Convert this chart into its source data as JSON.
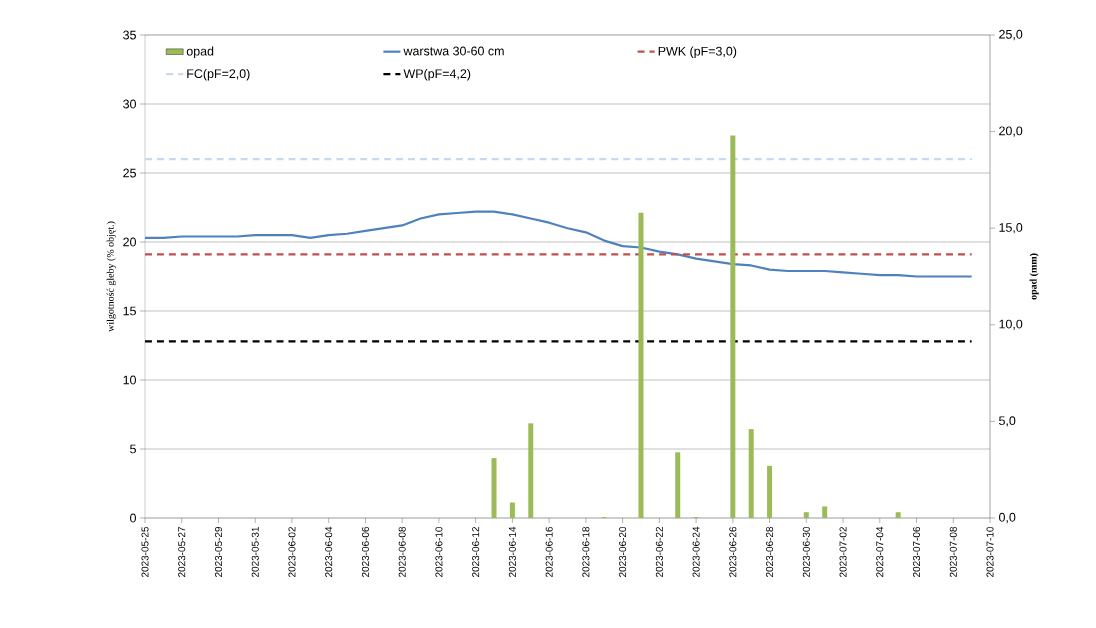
{
  "chart_data": {
    "type": "line",
    "ylabel": "wilgotność gleby (% objęt.)",
    "y2label": "opad (mm)",
    "xlim": [
      "2023-05-25",
      "2023-07-10"
    ],
    "xticks": [
      "2023-05-25",
      "2023-05-27",
      "2023-05-29",
      "2023-05-31",
      "2023-06-02",
      "2023-06-04",
      "2023-06-06",
      "2023-06-08",
      "2023-06-10",
      "2023-06-12",
      "2023-06-14",
      "2023-06-16",
      "2023-06-18",
      "2023-06-20",
      "2023-06-22",
      "2023-06-24",
      "2023-06-26",
      "2023-06-28",
      "2023-06-30",
      "2023-07-02",
      "2023-07-04",
      "2023-07-06",
      "2023-07-08",
      "2023-07-10"
    ],
    "ylim": [
      0,
      35
    ],
    "yticks": [
      0,
      5,
      10,
      15,
      20,
      25,
      30,
      35
    ],
    "y2lim": [
      0,
      25
    ],
    "y2ticks": [
      {
        "value": 0,
        "label": "0,0"
      },
      {
        "value": 5,
        "label": "5,0"
      },
      {
        "value": 10,
        "label": "10,0"
      },
      {
        "value": 15,
        "label": "15,0"
      },
      {
        "value": 20,
        "label": "20,0"
      },
      {
        "value": 25,
        "label": "25,0"
      }
    ],
    "grid": "y",
    "legend": "top",
    "series": [
      {
        "name": "opad",
        "type": "bar",
        "axis": "y2",
        "color": "#9bbb59",
        "x": [
          "2023-06-13",
          "2023-06-14",
          "2023-06-15",
          "2023-06-19",
          "2023-06-21",
          "2023-06-23",
          "2023-06-24",
          "2023-06-26",
          "2023-06-27",
          "2023-06-28",
          "2023-06-30",
          "2023-07-01",
          "2023-07-05"
        ],
        "values": [
          3.1,
          0.8,
          4.9,
          0.05,
          15.8,
          3.4,
          0.05,
          19.8,
          4.6,
          2.7,
          0.3,
          0.6,
          0.3
        ]
      },
      {
        "name": "warstwa 30-60 cm",
        "color": "#4f81bd",
        "line_style": "solid",
        "x": [
          "2023-05-25",
          "2023-05-26",
          "2023-05-27",
          "2023-05-28",
          "2023-05-29",
          "2023-05-30",
          "2023-05-31",
          "2023-06-01",
          "2023-06-02",
          "2023-06-03",
          "2023-06-04",
          "2023-06-05",
          "2023-06-06",
          "2023-06-07",
          "2023-06-08",
          "2023-06-09",
          "2023-06-10",
          "2023-06-11",
          "2023-06-12",
          "2023-06-13",
          "2023-06-14",
          "2023-06-15",
          "2023-06-16",
          "2023-06-17",
          "2023-06-18",
          "2023-06-19",
          "2023-06-20",
          "2023-06-21",
          "2023-06-22",
          "2023-06-23",
          "2023-06-24",
          "2023-06-25",
          "2023-06-26",
          "2023-06-27",
          "2023-06-28",
          "2023-06-29",
          "2023-06-30",
          "2023-07-01",
          "2023-07-02",
          "2023-07-03",
          "2023-07-04",
          "2023-07-05",
          "2023-07-06",
          "2023-07-07",
          "2023-07-08",
          "2023-07-09"
        ],
        "values": [
          20.3,
          20.3,
          20.4,
          20.4,
          20.4,
          20.4,
          20.5,
          20.5,
          20.5,
          20.3,
          20.5,
          20.6,
          20.8,
          21.0,
          21.2,
          21.7,
          22.0,
          22.1,
          22.2,
          22.2,
          22.0,
          21.7,
          21.4,
          21.0,
          20.7,
          20.1,
          19.7,
          19.6,
          19.3,
          19.1,
          18.8,
          18.6,
          18.4,
          18.3,
          18.0,
          17.9,
          17.9,
          17.9,
          17.8,
          17.7,
          17.6,
          17.6,
          17.5,
          17.5,
          17.5,
          17.5
        ]
      },
      {
        "name": "PWK (pF=3,0)",
        "color": "#c0504d",
        "line_style": "dashed",
        "x": [
          "2023-05-25",
          "2023-07-09"
        ],
        "values": [
          19.1,
          19.1
        ]
      },
      {
        "name": "FC(pF=2,0)",
        "color": "#c6d9f1",
        "line_style": "dashed",
        "x": [
          "2023-05-25",
          "2023-07-09"
        ],
        "values": [
          26.0,
          26.0
        ]
      },
      {
        "name": "WP(pF=4,2)",
        "color": "#000000",
        "line_style": "dashed",
        "x": [
          "2023-05-25",
          "2023-07-09"
        ],
        "values": [
          12.8,
          12.8
        ]
      }
    ]
  }
}
